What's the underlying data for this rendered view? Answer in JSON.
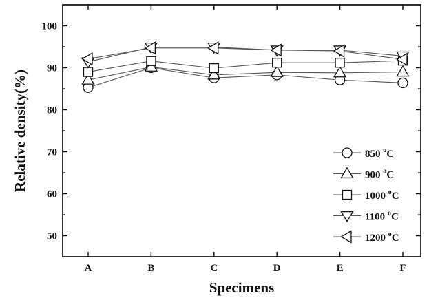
{
  "chart_data": {
    "type": "line",
    "xlabel": "Specimens",
    "ylabel": "Relative density(%)",
    "categories": [
      "A",
      "B",
      "C",
      "D",
      "E",
      "F"
    ],
    "ylim": [
      45,
      105
    ],
    "yticks": [
      50,
      60,
      70,
      80,
      90,
      100
    ],
    "grid": false,
    "legend_position": "bottom-right",
    "series": [
      {
        "name": "850",
        "unit": "°C",
        "marker": "circle",
        "values": [
          85.3,
          90.0,
          87.6,
          88.3,
          87.1,
          86.4
        ]
      },
      {
        "name": "900",
        "unit": "°C",
        "marker": "triangle-up",
        "values": [
          87.1,
          90.2,
          88.3,
          88.9,
          88.8,
          89.0
        ]
      },
      {
        "name": "1000",
        "unit": "°C",
        "marker": "square",
        "values": [
          89.0,
          91.6,
          89.9,
          91.2,
          91.2,
          91.7
        ]
      },
      {
        "name": "1100",
        "unit": "°C",
        "marker": "triangle-down",
        "values": [
          91.4,
          94.9,
          94.9,
          94.2,
          94.2,
          92.8
        ]
      },
      {
        "name": "1200",
        "unit": "°C",
        "marker": "triangle-left",
        "values": [
          92.1,
          94.7,
          94.7,
          94.2,
          94.0,
          92.0
        ]
      }
    ],
    "colors": {
      "line": "#555555",
      "marker_stroke": "#111111",
      "axis": "#000000"
    }
  }
}
